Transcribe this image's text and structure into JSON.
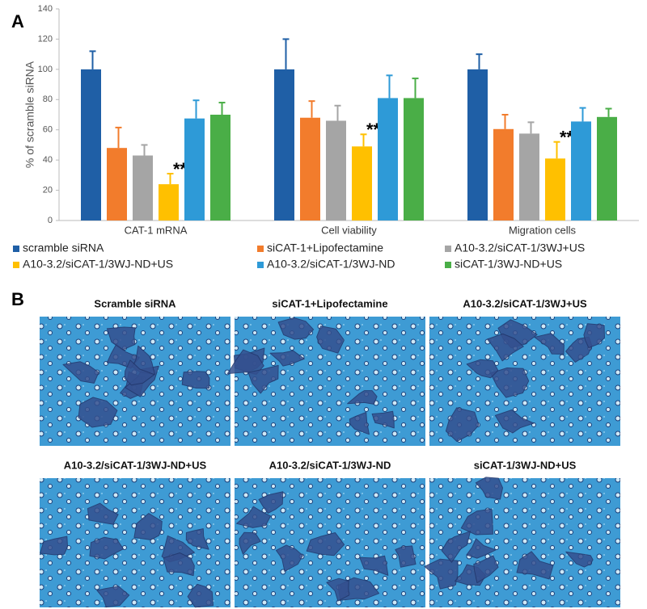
{
  "panel_labels": [
    "A",
    "B"
  ],
  "chart_data": {
    "type": "bar",
    "ylabel": "% of scramble siRNA",
    "categories": [
      "CAT-1 mRNA",
      "Cell viability",
      "Migration cells"
    ],
    "series": [
      {
        "name": "scramble siRNA",
        "color": "#1f5fa6",
        "values": [
          100,
          100,
          100
        ],
        "errors": [
          12,
          20,
          10
        ]
      },
      {
        "name": "siCAT-1+Lipofectamine",
        "color": "#f27c2c",
        "values": [
          48,
          68,
          60.5
        ],
        "errors": [
          13.5,
          11,
          9.5
        ]
      },
      {
        "name": "A10-3.2/siCAT-1/3WJ+US",
        "color": "#a5a5a5",
        "values": [
          43,
          66,
          57.5
        ],
        "errors": [
          7,
          10,
          7.5
        ]
      },
      {
        "name": "A10-3.2/siCAT-1/3WJ-ND+US",
        "color": "#ffc000",
        "values": [
          24,
          49,
          41
        ],
        "errors": [
          7,
          8,
          11
        ],
        "value_annotations": [
          "**",
          "**",
          "**"
        ]
      },
      {
        "name": "A10-3.2/siCAT-1/3WJ-ND",
        "color": "#2e9ad7",
        "values": [
          67.5,
          81,
          65.5
        ],
        "errors": [
          12,
          15,
          9
        ]
      },
      {
        "name": "siCAT-1/3WJ-ND+US",
        "color": "#4aae47",
        "values": [
          70,
          81,
          68.5
        ],
        "errors": [
          8,
          13,
          5.5
        ]
      }
    ],
    "ylim": [
      0,
      140
    ],
    "yticks": [
      0,
      20,
      40,
      60,
      80,
      100,
      120,
      140
    ]
  },
  "images": [
    {
      "caption": "Scramble siRNA"
    },
    {
      "caption": "siCAT-1+Lipofectamine"
    },
    {
      "caption": "A10-3.2/siCAT-1/3WJ+US"
    },
    {
      "caption": "A10-3.2/siCAT-1/3WJ-ND+US"
    },
    {
      "caption": "A10-3.2/siCAT-1/3WJ-ND"
    },
    {
      "caption": "siCAT-1/3WJ-ND+US"
    }
  ]
}
